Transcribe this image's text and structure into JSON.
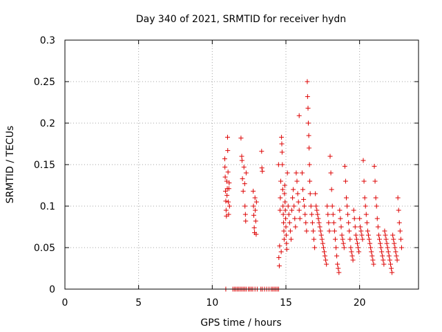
{
  "chart_data": {
    "type": "scatter",
    "title": "Day 340 of 2021, SRMTID for receiver hydn",
    "xlabel": "GPS time / hours",
    "ylabel": "SRMTID / TECUs",
    "xlim": [
      0,
      24
    ],
    "ylim": [
      0,
      0.3
    ],
    "grid": true,
    "series_color": "#dd0000",
    "x_ticks": [
      {
        "value": 0,
        "label": "0"
      },
      {
        "value": 5,
        "label": "5"
      },
      {
        "value": 10,
        "label": "10"
      },
      {
        "value": 15,
        "label": "15"
      },
      {
        "value": 20,
        "label": "20"
      }
    ],
    "y_ticks": [
      {
        "value": 0,
        "label": "0"
      },
      {
        "value": 0.05,
        "label": "0.05"
      },
      {
        "value": 0.1,
        "label": "0.1"
      },
      {
        "value": 0.15,
        "label": "0.15"
      },
      {
        "value": 0.2,
        "label": "0.2"
      },
      {
        "value": 0.25,
        "label": "0.25"
      },
      {
        "value": 0.3,
        "label": "0.3"
      }
    ],
    "points": [
      [
        10.85,
        0.157
      ],
      [
        10.86,
        0.147
      ],
      [
        10.88,
        0.135
      ],
      [
        10.9,
        0.118
      ],
      [
        10.92,
        0.106
      ],
      [
        10.94,
        0.095
      ],
      [
        10.96,
        0.088
      ],
      [
        10.98,
        0.13
      ],
      [
        11.0,
        0.113
      ],
      [
        11.02,
        0.121
      ],
      [
        11.04,
        0.183
      ],
      [
        11.05,
        0.167
      ],
      [
        11.07,
        0.141
      ],
      [
        11.09,
        0.105
      ],
      [
        11.11,
        0.09
      ],
      [
        11.13,
        0.121
      ],
      [
        11.15,
        0.128
      ],
      [
        11.17,
        0.1
      ],
      [
        11.95,
        0.182
      ],
      [
        12.0,
        0.16
      ],
      [
        12.02,
        0.155
      ],
      [
        12.05,
        0.133
      ],
      [
        12.1,
        0.118
      ],
      [
        12.15,
        0.147
      ],
      [
        12.2,
        0.127
      ],
      [
        12.22,
        0.1
      ],
      [
        12.25,
        0.09
      ],
      [
        12.27,
        0.082
      ],
      [
        12.3,
        0.14
      ],
      [
        12.78,
        0.118
      ],
      [
        12.8,
        0.1
      ],
      [
        12.82,
        0.089
      ],
      [
        12.85,
        0.074
      ],
      [
        12.87,
        0.068
      ],
      [
        12.9,
        0.11
      ],
      [
        12.92,
        0.095
      ],
      [
        12.95,
        0.082
      ],
      [
        12.98,
        0.066
      ],
      [
        13.0,
        0.105
      ],
      [
        13.35,
        0.166
      ],
      [
        13.37,
        0.146
      ],
      [
        13.4,
        0.142
      ],
      [
        14.5,
        0.15
      ],
      [
        14.52,
        0.038
      ],
      [
        14.55,
        0.028
      ],
      [
        14.57,
        0.052
      ],
      [
        14.6,
        0.095
      ],
      [
        14.62,
        0.11
      ],
      [
        14.65,
        0.13
      ],
      [
        14.68,
        0.045
      ],
      [
        14.7,
        0.183
      ],
      [
        14.72,
        0.175
      ],
      [
        14.74,
        0.165
      ],
      [
        14.76,
        0.15
      ],
      [
        14.78,
        0.12
      ],
      [
        14.8,
        0.1
      ],
      [
        14.82,
        0.09
      ],
      [
        14.84,
        0.08
      ],
      [
        14.86,
        0.07
      ],
      [
        14.88,
        0.06
      ],
      [
        14.9,
        0.115
      ],
      [
        14.92,
        0.125
      ],
      [
        14.94,
        0.105
      ],
      [
        14.96,
        0.095
      ],
      [
        14.98,
        0.085
      ],
      [
        15.0,
        0.075
      ],
      [
        15.02,
        0.065
      ],
      [
        15.04,
        0.055
      ],
      [
        15.06,
        0.048
      ],
      [
        15.1,
        0.14
      ],
      [
        15.15,
        0.1
      ],
      [
        15.2,
        0.09
      ],
      [
        15.25,
        0.08
      ],
      [
        15.3,
        0.07
      ],
      [
        15.35,
        0.06
      ],
      [
        15.4,
        0.095
      ],
      [
        15.45,
        0.11
      ],
      [
        15.5,
        0.12
      ],
      [
        15.55,
        0.1
      ],
      [
        15.6,
        0.085
      ],
      [
        15.65,
        0.075
      ],
      [
        15.7,
        0.14
      ],
      [
        15.75,
        0.13
      ],
      [
        15.8,
        0.115
      ],
      [
        15.85,
        0.105
      ],
      [
        15.9,
        0.095
      ],
      [
        15.95,
        0.085
      ],
      [
        15.9,
        0.209
      ],
      [
        16.1,
        0.14
      ],
      [
        16.15,
        0.12
      ],
      [
        16.2,
        0.108
      ],
      [
        16.25,
        0.1
      ],
      [
        16.3,
        0.09
      ],
      [
        16.35,
        0.08
      ],
      [
        16.4,
        0.07
      ],
      [
        16.45,
        0.25
      ],
      [
        16.47,
        0.232
      ],
      [
        16.5,
        0.218
      ],
      [
        16.52,
        0.2
      ],
      [
        16.55,
        0.185
      ],
      [
        16.57,
        0.17
      ],
      [
        16.6,
        0.15
      ],
      [
        16.62,
        0.13
      ],
      [
        16.65,
        0.115
      ],
      [
        16.7,
        0.1
      ],
      [
        16.75,
        0.09
      ],
      [
        16.8,
        0.08
      ],
      [
        16.85,
        0.07
      ],
      [
        16.9,
        0.06
      ],
      [
        16.95,
        0.05
      ],
      [
        17.0,
        0.115
      ],
      [
        17.05,
        0.1
      ],
      [
        17.1,
        0.095
      ],
      [
        17.15,
        0.09
      ],
      [
        17.2,
        0.085
      ],
      [
        17.25,
        0.08
      ],
      [
        17.3,
        0.075
      ],
      [
        17.35,
        0.07
      ],
      [
        17.4,
        0.065
      ],
      [
        17.45,
        0.06
      ],
      [
        17.5,
        0.055
      ],
      [
        17.55,
        0.05
      ],
      [
        17.6,
        0.045
      ],
      [
        17.65,
        0.04
      ],
      [
        17.7,
        0.035
      ],
      [
        17.75,
        0.03
      ],
      [
        17.8,
        0.1
      ],
      [
        17.85,
        0.09
      ],
      [
        17.9,
        0.08
      ],
      [
        17.95,
        0.07
      ],
      [
        18.0,
        0.16
      ],
      [
        18.05,
        0.14
      ],
      [
        18.1,
        0.12
      ],
      [
        18.15,
        0.1
      ],
      [
        18.2,
        0.09
      ],
      [
        18.25,
        0.08
      ],
      [
        18.3,
        0.07
      ],
      [
        18.35,
        0.06
      ],
      [
        18.4,
        0.05
      ],
      [
        18.45,
        0.04
      ],
      [
        18.5,
        0.03
      ],
      [
        18.55,
        0.025
      ],
      [
        18.6,
        0.02
      ],
      [
        18.65,
        0.095
      ],
      [
        18.7,
        0.085
      ],
      [
        18.75,
        0.075
      ],
      [
        18.8,
        0.065
      ],
      [
        18.85,
        0.06
      ],
      [
        18.9,
        0.055
      ],
      [
        18.95,
        0.05
      ],
      [
        19.0,
        0.148
      ],
      [
        19.05,
        0.13
      ],
      [
        19.1,
        0.11
      ],
      [
        19.15,
        0.1
      ],
      [
        19.2,
        0.09
      ],
      [
        19.25,
        0.08
      ],
      [
        19.3,
        0.07
      ],
      [
        19.35,
        0.06
      ],
      [
        19.4,
        0.05
      ],
      [
        19.45,
        0.045
      ],
      [
        19.5,
        0.04
      ],
      [
        19.55,
        0.035
      ],
      [
        19.6,
        0.095
      ],
      [
        19.65,
        0.085
      ],
      [
        19.7,
        0.075
      ],
      [
        19.75,
        0.065
      ],
      [
        19.8,
        0.06
      ],
      [
        19.85,
        0.055
      ],
      [
        19.9,
        0.05
      ],
      [
        19.95,
        0.045
      ],
      [
        20.0,
        0.085
      ],
      [
        20.05,
        0.075
      ],
      [
        20.1,
        0.07
      ],
      [
        20.15,
        0.065
      ],
      [
        20.2,
        0.06
      ],
      [
        20.25,
        0.155
      ],
      [
        20.3,
        0.13
      ],
      [
        20.35,
        0.11
      ],
      [
        20.4,
        0.1
      ],
      [
        20.45,
        0.09
      ],
      [
        20.5,
        0.08
      ],
      [
        20.55,
        0.07
      ],
      [
        20.6,
        0.065
      ],
      [
        20.65,
        0.06
      ],
      [
        20.7,
        0.055
      ],
      [
        20.75,
        0.05
      ],
      [
        20.8,
        0.045
      ],
      [
        20.85,
        0.04
      ],
      [
        20.9,
        0.035
      ],
      [
        20.95,
        0.03
      ],
      [
        21.0,
        0.148
      ],
      [
        21.05,
        0.13
      ],
      [
        21.1,
        0.11
      ],
      [
        21.15,
        0.1
      ],
      [
        21.2,
        0.085
      ],
      [
        21.25,
        0.075
      ],
      [
        21.3,
        0.065
      ],
      [
        21.35,
        0.06
      ],
      [
        21.4,
        0.055
      ],
      [
        21.45,
        0.05
      ],
      [
        21.5,
        0.045
      ],
      [
        21.55,
        0.04
      ],
      [
        21.6,
        0.035
      ],
      [
        21.65,
        0.03
      ],
      [
        21.7,
        0.07
      ],
      [
        21.75,
        0.065
      ],
      [
        21.8,
        0.06
      ],
      [
        21.85,
        0.055
      ],
      [
        21.9,
        0.05
      ],
      [
        21.95,
        0.045
      ],
      [
        22.0,
        0.04
      ],
      [
        22.05,
        0.035
      ],
      [
        22.1,
        0.03
      ],
      [
        22.15,
        0.025
      ],
      [
        22.2,
        0.02
      ],
      [
        22.25,
        0.065
      ],
      [
        22.3,
        0.06
      ],
      [
        22.35,
        0.055
      ],
      [
        22.4,
        0.05
      ],
      [
        22.45,
        0.045
      ],
      [
        22.5,
        0.04
      ],
      [
        22.55,
        0.035
      ],
      [
        22.6,
        0.11
      ],
      [
        22.65,
        0.095
      ],
      [
        22.7,
        0.08
      ],
      [
        22.75,
        0.07
      ],
      [
        22.8,
        0.06
      ],
      [
        22.85,
        0.05
      ],
      [
        10.92,
        0.0
      ],
      [
        11.4,
        0.0
      ],
      [
        11.5,
        0.0
      ],
      [
        11.6,
        0.0
      ],
      [
        11.7,
        0.0
      ],
      [
        11.8,
        0.0
      ],
      [
        11.9,
        0.0
      ],
      [
        12.0,
        0.0
      ],
      [
        12.1,
        0.0
      ],
      [
        12.2,
        0.0
      ],
      [
        12.3,
        0.0
      ],
      [
        12.45,
        0.0
      ],
      [
        12.55,
        0.0
      ],
      [
        12.65,
        0.0
      ],
      [
        12.75,
        0.0
      ],
      [
        12.9,
        0.0
      ],
      [
        13.05,
        0.0
      ],
      [
        13.3,
        0.0
      ],
      [
        13.4,
        0.0
      ],
      [
        13.55,
        0.0
      ],
      [
        13.7,
        0.0
      ],
      [
        13.85,
        0.0
      ],
      [
        14.0,
        0.0
      ],
      [
        14.1,
        0.0
      ],
      [
        14.2,
        0.0
      ],
      [
        14.3,
        0.0
      ],
      [
        14.4,
        0.0
      ],
      [
        14.5,
        0.0
      ]
    ]
  }
}
